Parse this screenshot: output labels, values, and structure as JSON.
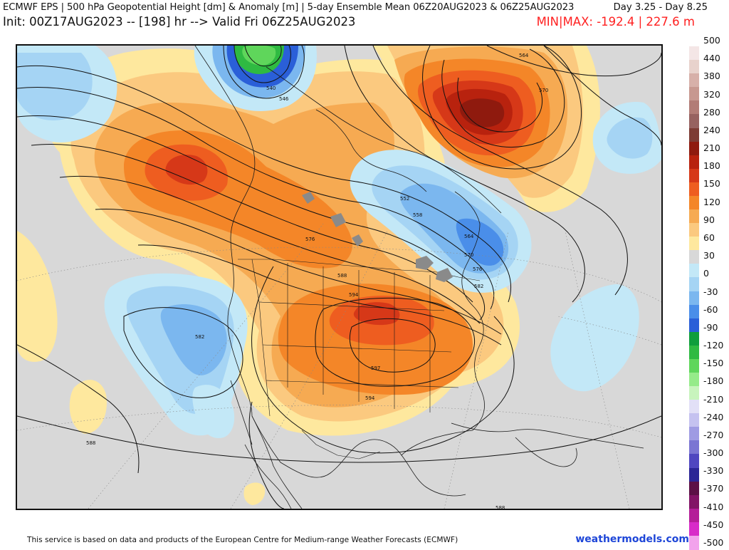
{
  "header": {
    "title": "ECMWF EPS | 500 hPa Geopotential Height [dm] & Anomaly [m] | 5-day Ensemble Mean 06Z20AUG2023 & 06Z25AUG2023",
    "day_range": "Day 3.25 - Day 8.25",
    "init_valid": "Init: 00Z17AUG2023 -- [198] hr --> Valid Fri 06Z25AUG2023",
    "minmax": "MIN|MAX: -192.4 | 227.6 m"
  },
  "colorbar": {
    "colors": [
      "#ffffff",
      "#f4e6e6",
      "#e8d2cc",
      "#d7b0a9",
      "#c79890",
      "#b27c76",
      "#976260",
      "#7d3b34",
      "#8f1a0e",
      "#b8220e",
      "#d63818",
      "#ee5d20",
      "#f48628",
      "#f6aa52",
      "#fbc97f",
      "#fee89e",
      "#d8d8d8",
      "#c3e8f7",
      "#a5d4f4",
      "#7bb7ef",
      "#4a8ee9",
      "#2a5fd8",
      "#0f9e3c",
      "#2fba42",
      "#5fd65b",
      "#96eb8a",
      "#c8f4bd",
      "#e2e0f7",
      "#c5c2f0",
      "#9f9be3",
      "#7b75d3",
      "#4f46c0",
      "#2b2596",
      "#5c1046",
      "#821466",
      "#b41d98",
      "#d82bc8",
      "#f2a2ec"
    ],
    "labels": [
      "500",
      "440",
      "380",
      "320",
      "280",
      "240",
      "210",
      "180",
      "150",
      "120",
      "90",
      "60",
      "30",
      "0",
      "-30",
      "-60",
      "-90",
      "-120",
      "-150",
      "-180",
      "-210",
      "-240",
      "-270",
      "-300",
      "-330",
      "-370",
      "-410",
      "-450",
      "-500"
    ]
  },
  "map": {
    "anomaly_colors": {
      "deep_red": "#8f1a0e",
      "red": "#b8220e",
      "red_orange": "#d63818",
      "orange": "#ee5d20",
      "light_orange": "#f48628",
      "tan": "#f6aa52",
      "peach": "#fbc97f",
      "yellow": "#fee89e",
      "neutral": "#d8d8d8",
      "pale_blue": "#c3e8f7",
      "light_blue": "#a5d4f4",
      "blue": "#7bb7ef",
      "mid_blue": "#4a8ee9",
      "dark_blue": "#2a5fd8",
      "green": "#2fba42",
      "bright_green": "#5fd65b"
    },
    "contour_labels": [
      "540",
      "546",
      "564",
      "570",
      "552",
      "558",
      "564",
      "570",
      "576",
      "576",
      "582",
      "588",
      "594",
      "597",
      "594",
      "582",
      "588",
      "588",
      "582"
    ]
  },
  "footer": {
    "attribution": "This service is based on data and products of the European Centre for Medium-range Weather Forecasts (ECMWF)",
    "site": "weathermodels.com"
  }
}
